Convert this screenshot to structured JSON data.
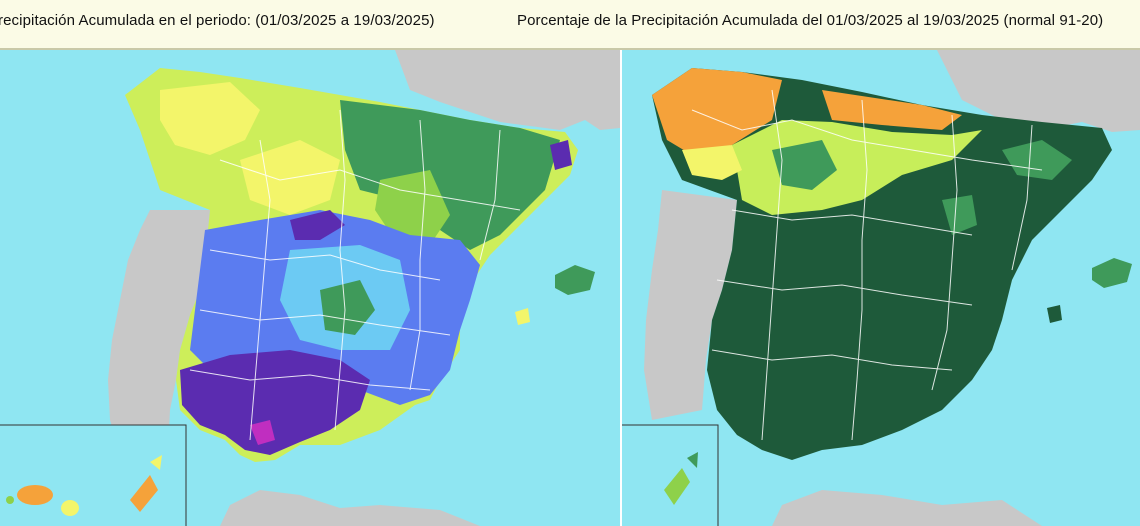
{
  "titles": {
    "left": "recipitación Acumulada en el periodo:  (01/03/2025 a 19/03/2025)",
    "right": "Porcentaje de la Precipitación Acumulada  del 01/03/2025 al 19/03/2025  (normal 91-20)"
  },
  "colors": {
    "sea": "#8fe6f2",
    "land_outside": "#c8c8c8",
    "border_lines": "#ffffff",
    "dark_green": "#1e5a3a",
    "mid_green": "#3f9a5a",
    "light_green": "#8ed14a",
    "yellow": "#f3f56a",
    "orange": "#f5a23a",
    "blue": "#5b7cf0",
    "cyan": "#6ccaf3",
    "purple": "#5b2cb0",
    "magenta": "#c02ec0"
  },
  "maps": {
    "left": {
      "subject": "precipitation-accumulated"
    },
    "right": {
      "subject": "precipitation-percentage"
    }
  }
}
